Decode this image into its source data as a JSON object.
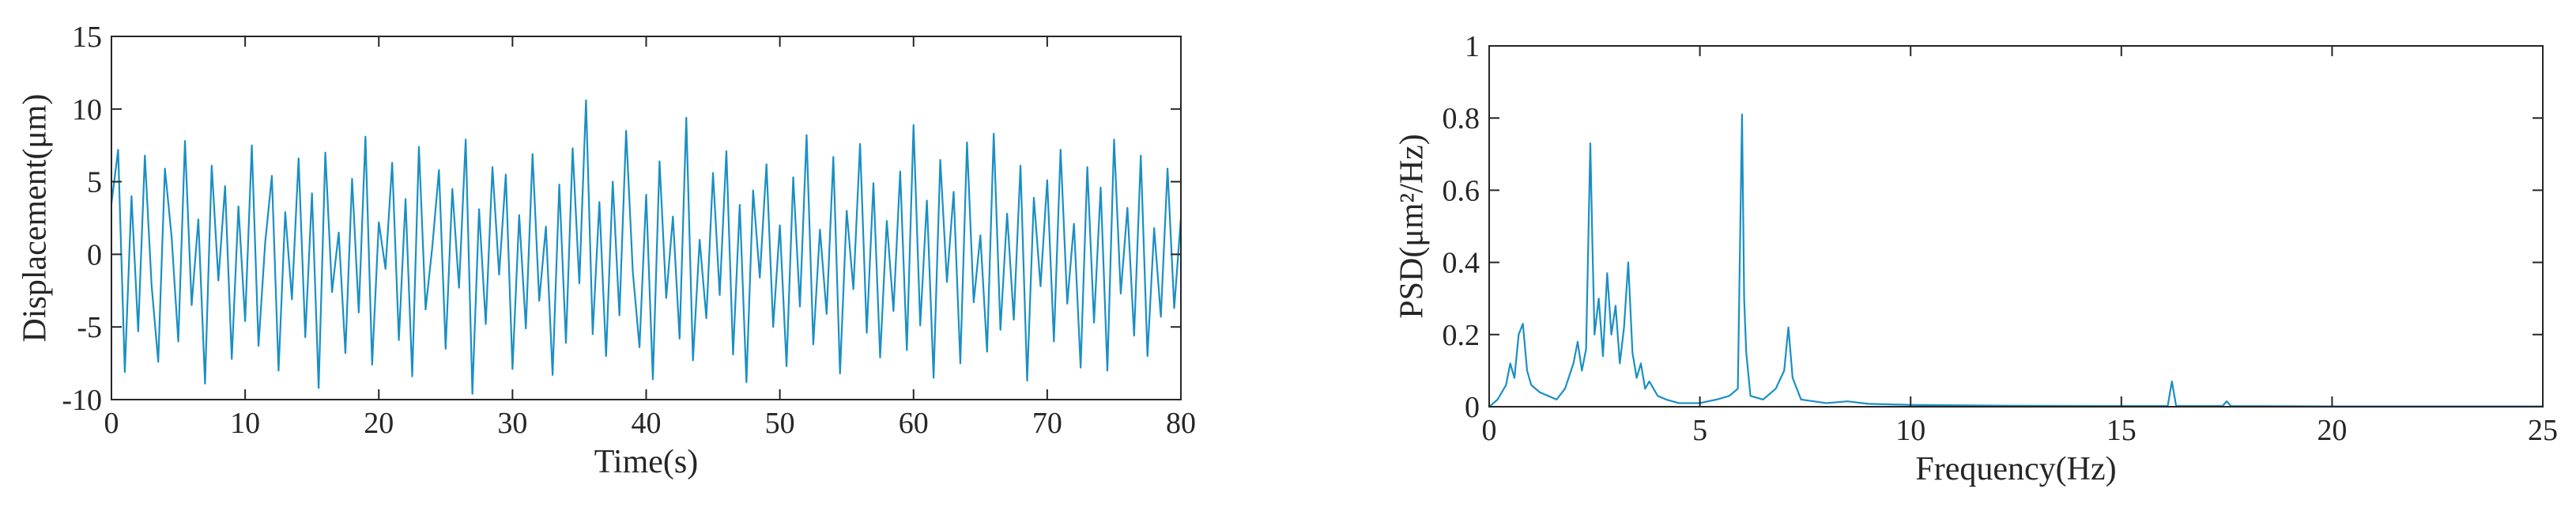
{
  "chart_data": [
    {
      "type": "line",
      "xlabel": "Time(s)",
      "ylabel": "Displacement(μm)",
      "xlim": [
        0,
        80
      ],
      "xticks": [
        0,
        10,
        20,
        30,
        40,
        50,
        60,
        70,
        80
      ],
      "ylim": [
        -10,
        15
      ],
      "yticks": [
        -10,
        -5,
        0,
        5,
        10,
        15
      ],
      "grid": false,
      "series": [
        {
          "color": "#1a8fc4",
          "x": [
            0,
            0.5,
            1,
            1.5,
            2,
            2.5,
            3,
            3.5,
            4,
            4.5,
            5,
            5.5,
            6,
            6.5,
            7,
            7.5,
            8,
            8.5,
            9,
            9.5,
            10,
            10.5,
            11,
            11.5,
            12,
            12.5,
            13,
            13.5,
            14,
            14.5,
            15,
            15.5,
            16,
            16.5,
            17,
            17.5,
            18,
            18.5,
            19,
            19.5,
            20,
            20.5,
            21,
            21.5,
            22,
            22.5,
            23,
            23.5,
            24,
            24.5,
            25,
            25.5,
            26,
            26.5,
            27,
            27.5,
            28,
            28.5,
            29,
            29.5,
            30,
            30.5,
            31,
            31.5,
            32,
            32.5,
            33,
            33.5,
            34,
            34.5,
            35,
            35.5,
            36,
            36.5,
            37,
            37.5,
            38,
            38.5,
            39,
            39.5,
            40,
            40.5,
            41,
            41.5,
            42,
            42.5,
            43,
            43.5,
            44,
            44.5,
            45,
            45.5,
            46,
            46.5,
            47,
            47.5,
            48,
            48.5,
            49,
            49.5,
            50,
            50.5,
            51,
            51.5,
            52,
            52.5,
            53,
            53.5,
            54,
            54.5,
            55,
            55.5,
            56,
            56.5,
            57,
            57.5,
            58,
            58.5,
            59,
            59.5,
            60,
            60.5,
            61,
            61.5,
            62,
            62.5,
            63,
            63.5,
            64,
            64.5,
            65,
            65.5,
            66,
            66.5,
            67,
            67.5,
            68,
            68.5,
            69,
            69.5,
            70,
            70.5,
            71,
            71.5,
            72,
            72.5,
            73,
            73.5,
            74,
            74.5,
            75,
            75.5,
            76,
            76.5,
            77,
            77.5,
            78,
            78.5,
            79,
            79.5,
            80
          ],
          "values": [
            3.5,
            7.2,
            -8.1,
            4.0,
            -5.3,
            6.8,
            -2.1,
            -7.4,
            5.9,
            1.2,
            -6.0,
            7.8,
            -3.5,
            2.4,
            -8.9,
            6.1,
            -1.8,
            4.7,
            -7.2,
            3.3,
            -4.6,
            7.5,
            -6.3,
            0.8,
            5.4,
            -8.0,
            2.9,
            -3.1,
            6.6,
            -5.7,
            4.2,
            -9.2,
            7.0,
            -2.6,
            1.5,
            -6.8,
            5.2,
            -4.0,
            8.1,
            -7.6,
            2.2,
            -1.0,
            6.3,
            -5.9,
            3.8,
            -8.4,
            7.4,
            -3.8,
            0.5,
            5.8,
            -6.5,
            4.5,
            -2.3,
            7.9,
            -9.6,
            3.1,
            -4.8,
            6.0,
            -1.4,
            5.5,
            -7.9,
            2.7,
            -5.1,
            6.9,
            -3.2,
            1.9,
            -8.3,
            4.8,
            -6.1,
            7.3,
            -2.0,
            10.6,
            -5.5,
            3.6,
            -7.0,
            5.0,
            -4.2,
            8.5,
            -1.2,
            -6.4,
            4.1,
            -8.6,
            6.4,
            -3.0,
            2.6,
            -5.8,
            9.4,
            -7.3,
            1.0,
            -4.4,
            5.6,
            -2.8,
            7.1,
            -6.9,
            3.4,
            -8.8,
            4.4,
            -1.6,
            6.2,
            -5.0,
            2.0,
            -7.7,
            5.3,
            -3.6,
            8.2,
            -6.2,
            1.7,
            -4.1,
            6.7,
            -8.2,
            3.0,
            -2.4,
            7.6,
            -5.4,
            4.9,
            -7.1,
            2.3,
            -3.9,
            5.7,
            -6.6,
            8.9,
            -4.9,
            3.7,
            -8.5,
            6.5,
            -1.9,
            4.3,
            -7.5,
            7.7,
            -3.3,
            1.3,
            -6.7,
            8.3,
            -5.2,
            2.8,
            -4.5,
            6.1,
            -8.7,
            3.9,
            -2.2,
            5.1,
            -6.0,
            7.2,
            -3.4,
            2.1,
            -7.8,
            6.0,
            -4.7,
            4.6,
            -8.0,
            7.9,
            -2.7,
            3.2,
            -5.6,
            6.8,
            -7.0,
            1.8,
            -4.3,
            5.9,
            -3.7,
            2.5
          ]
        }
      ]
    },
    {
      "type": "line",
      "xlabel": "Frequency(Hz)",
      "ylabel": "PSD(μm²/Hz)",
      "xlim": [
        0,
        25
      ],
      "xticks": [
        0,
        5,
        10,
        15,
        20,
        25
      ],
      "ylim": [
        0,
        1
      ],
      "yticks": [
        0,
        0.2,
        0.4,
        0.6,
        0.8,
        1
      ],
      "grid": false,
      "series": [
        {
          "color": "#1a8fc4",
          "x": [
            0,
            0.2,
            0.4,
            0.5,
            0.6,
            0.7,
            0.8,
            0.9,
            1.0,
            1.2,
            1.4,
            1.6,
            1.8,
            2.0,
            2.1,
            2.2,
            2.3,
            2.4,
            2.45,
            2.5,
            2.6,
            2.7,
            2.8,
            2.9,
            3.0,
            3.1,
            3.2,
            3.3,
            3.4,
            3.5,
            3.6,
            3.7,
            3.8,
            4.0,
            4.2,
            4.5,
            5.0,
            5.4,
            5.7,
            5.9,
            6.0,
            6.05,
            6.1,
            6.2,
            6.5,
            6.8,
            7.0,
            7.1,
            7.2,
            7.4,
            8.0,
            8.5,
            9.0,
            10,
            12,
            15,
            16.1,
            16.2,
            16.3,
            17.4,
            17.5,
            17.6,
            20,
            25
          ],
          "values": [
            0,
            0.02,
            0.06,
            0.12,
            0.08,
            0.2,
            0.23,
            0.1,
            0.06,
            0.04,
            0.03,
            0.02,
            0.05,
            0.12,
            0.18,
            0.1,
            0.16,
            0.73,
            0.45,
            0.2,
            0.3,
            0.14,
            0.37,
            0.2,
            0.28,
            0.12,
            0.22,
            0.4,
            0.15,
            0.08,
            0.12,
            0.05,
            0.07,
            0.03,
            0.02,
            0.01,
            0.01,
            0.02,
            0.03,
            0.05,
            0.81,
            0.3,
            0.15,
            0.03,
            0.02,
            0.05,
            0.1,
            0.22,
            0.08,
            0.02,
            0.01,
            0.015,
            0.008,
            0.005,
            0.003,
            0.002,
            0.002,
            0.07,
            0.002,
            0.002,
            0.015,
            0.002,
            0.001,
            0.001
          ]
        }
      ]
    }
  ]
}
